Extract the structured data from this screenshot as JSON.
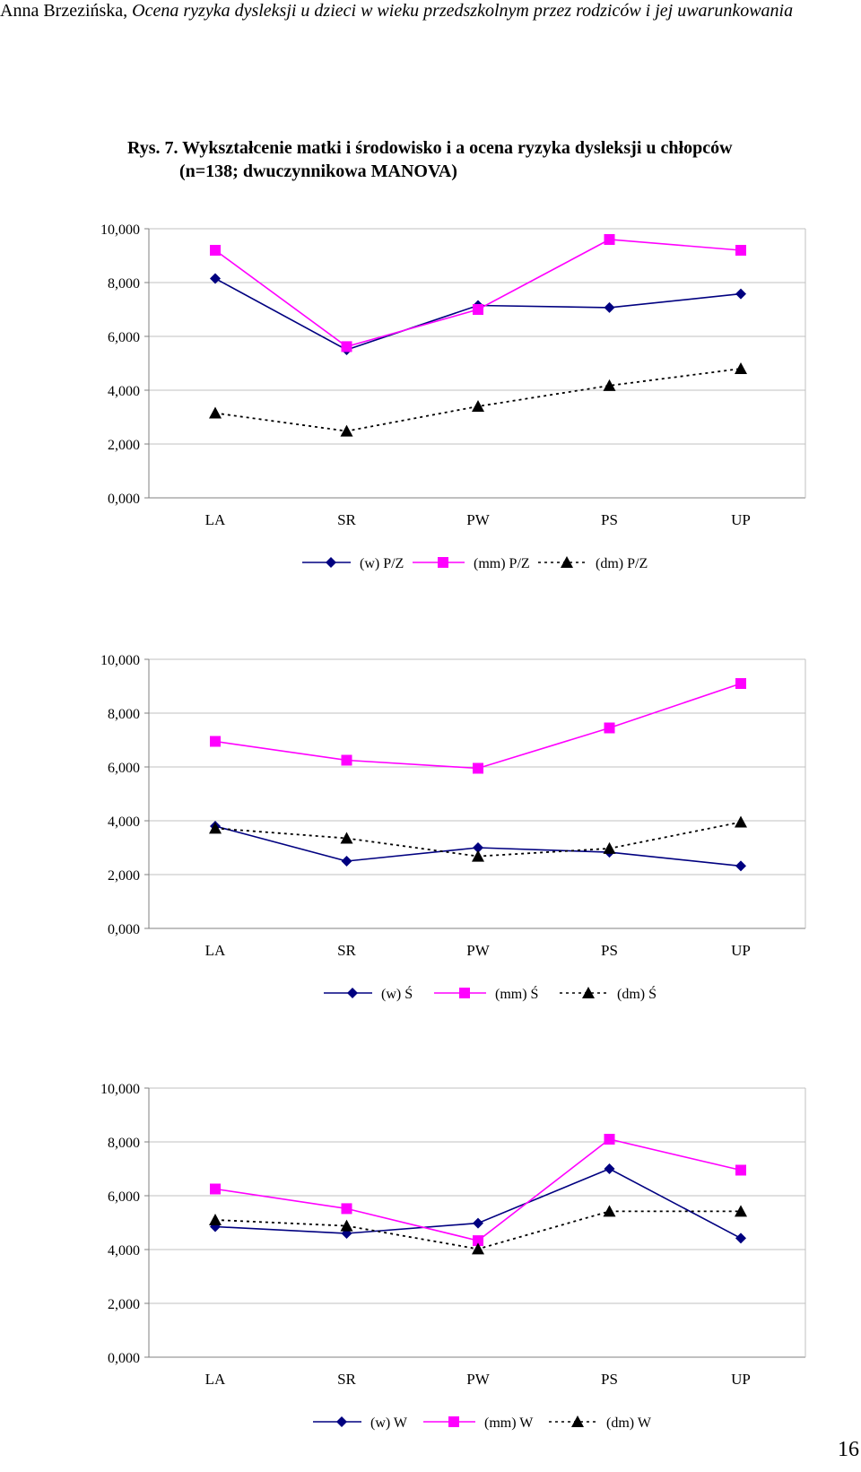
{
  "header": {
    "author": "Anna Brzezińska,",
    "title": "Ocena ryzyka dysleksji u dzieci w wieku przedszkolnym przez rodziców i jej uwarunkowania"
  },
  "caption": {
    "line1": "Rys. 7.  Wykształcenie matki i środowisko i a ocena ryzyka dysleksji u chłopców",
    "line2": "(n=138; dwuczynnikowa MANOVA)"
  },
  "page_number": "16",
  "colors": {
    "w": "#000080",
    "mm": "#FF00FF",
    "dm": "#000000",
    "grid": "#C0C0C0",
    "axis": "#808080"
  },
  "chart_data": [
    {
      "type": "line",
      "categories": [
        "LA",
        "SR",
        "PW",
        "PS",
        "UP"
      ],
      "yticks": [
        "0,000",
        "2,000",
        "4,000",
        "6,000",
        "8,000",
        "10,000"
      ],
      "ylim": [
        0,
        10
      ],
      "grid": true,
      "legend": "bottom",
      "series": [
        {
          "name": "(w) P/Z",
          "key": "w",
          "values": [
            8.15,
            5.5,
            7.15,
            7.07,
            7.58
          ]
        },
        {
          "name": "(mm) P/Z",
          "key": "mm",
          "values": [
            9.2,
            5.62,
            7.0,
            9.6,
            9.2
          ]
        },
        {
          "name": "(dm) P/Z",
          "key": "dm",
          "values": [
            3.15,
            2.48,
            3.4,
            4.17,
            4.8
          ]
        }
      ]
    },
    {
      "type": "line",
      "categories": [
        "LA",
        "SR",
        "PW",
        "PS",
        "UP"
      ],
      "yticks": [
        "0,000",
        "2,000",
        "4,000",
        "6,000",
        "8,000",
        "10,000"
      ],
      "ylim": [
        0,
        10
      ],
      "grid": true,
      "legend": "bottom",
      "series": [
        {
          "name": "(w) Ś",
          "key": "w",
          "values": [
            3.8,
            2.5,
            3.0,
            2.83,
            2.32
          ]
        },
        {
          "name": "(mm) Ś",
          "key": "mm",
          "values": [
            6.95,
            6.25,
            5.95,
            7.45,
            9.1
          ]
        },
        {
          "name": "(dm) Ś",
          "key": "dm",
          "values": [
            3.72,
            3.35,
            2.68,
            2.97,
            3.95
          ]
        }
      ]
    },
    {
      "type": "line",
      "categories": [
        "LA",
        "SR",
        "PW",
        "PS",
        "UP"
      ],
      "yticks": [
        "0,000",
        "2,000",
        "4,000",
        "6,000",
        "8,000",
        "10,000"
      ],
      "ylim": [
        0,
        10
      ],
      "grid": true,
      "legend": "bottom",
      "series": [
        {
          "name": "(w) W",
          "key": "w",
          "values": [
            4.85,
            4.6,
            4.98,
            7.0,
            4.42
          ]
        },
        {
          "name": "(mm) W",
          "key": "mm",
          "values": [
            6.25,
            5.52,
            4.33,
            8.1,
            6.95
          ]
        },
        {
          "name": "(dm) W",
          "key": "dm",
          "values": [
            5.1,
            4.88,
            4.02,
            5.42,
            5.42
          ]
        }
      ]
    }
  ]
}
